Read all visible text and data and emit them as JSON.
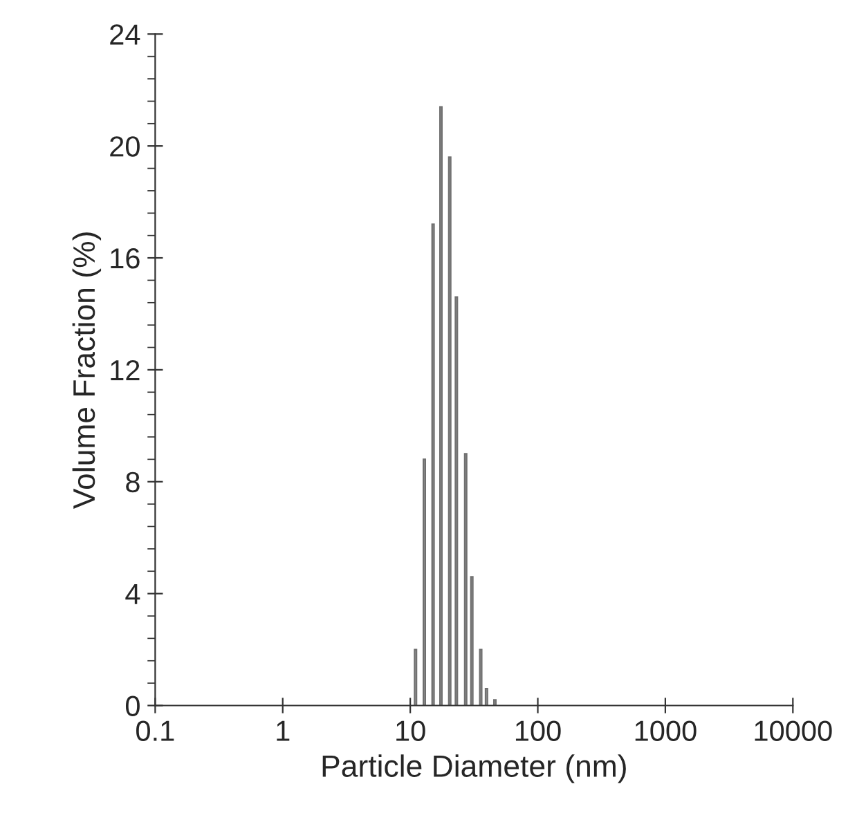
{
  "chart_data": {
    "type": "bar",
    "xlabel": "Particle Diameter (nm)",
    "ylabel": "Volume Fraction (%)",
    "x": [
      11.0,
      12.9,
      15.1,
      17.4,
      20.4,
      23.0,
      27.2,
      30.4,
      35.7,
      39.6,
      46.1
    ],
    "values": [
      2.0,
      8.8,
      17.2,
      21.4,
      19.6,
      14.6,
      9.0,
      4.6,
      2.0,
      0.6,
      0.2
    ],
    "color": "#9a9a9a",
    "log": "x",
    "xlim": [
      0.1,
      10000
    ],
    "xticks": [
      0.1,
      1,
      10,
      100,
      1000,
      10000
    ],
    "ylim": [
      0,
      24
    ],
    "yticks": [
      0,
      4,
      8,
      12,
      16,
      20,
      24
    ],
    "grid": false
  }
}
